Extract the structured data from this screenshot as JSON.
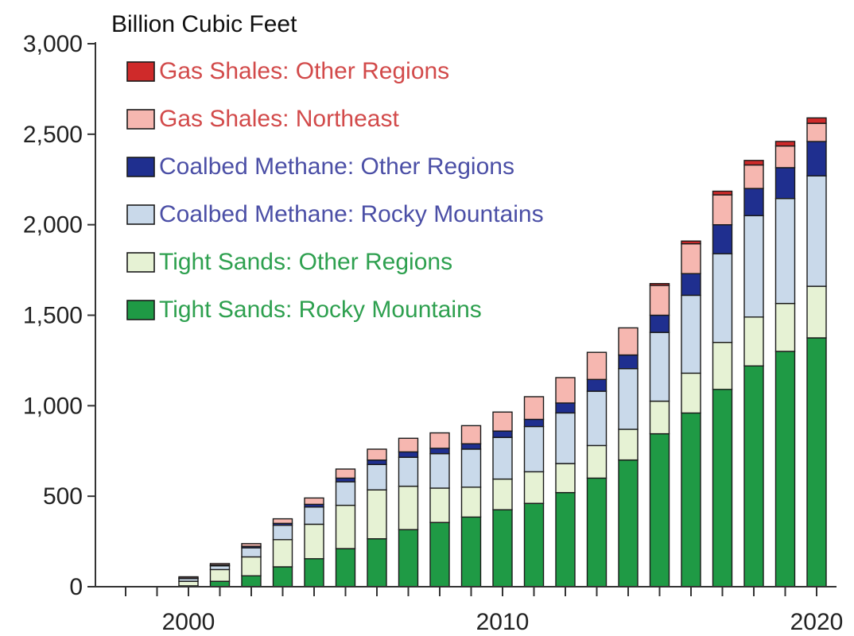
{
  "chart_data": {
    "type": "bar",
    "stacked": true,
    "ylabel": "Billion Cubic Feet",
    "ylim": [
      0,
      3000
    ],
    "yticks": [
      0,
      500,
      1000,
      1500,
      2000,
      2500,
      3000
    ],
    "ytick_labels": [
      "0",
      "500",
      "1,000",
      "1,500",
      "2,000",
      "2,500",
      "3,000"
    ],
    "xlim": [
      1998,
      2020
    ],
    "xtick_labels": [
      "2000",
      "2010",
      "2020"
    ],
    "legend_position": "top-left",
    "grid": false,
    "categories": [
      2000,
      2001,
      2002,
      2003,
      2004,
      2005,
      2006,
      2007,
      2008,
      2009,
      2010,
      2011,
      2012,
      2013,
      2014,
      2015,
      2016,
      2017,
      2018,
      2019,
      2020
    ],
    "series": [
      {
        "name": "Tight Sands: Rocky Mountains",
        "color": "#1f9a45",
        "legend_text_color": "#2ea04f",
        "values": [
          5,
          30,
          60,
          110,
          155,
          210,
          265,
          315,
          355,
          385,
          425,
          460,
          520,
          600,
          700,
          845,
          960,
          1090,
          1220,
          1300,
          1375
        ]
      },
      {
        "name": "Tight Sands: Other Regions",
        "color": "#e6f2d4",
        "legend_text_color": "#2ea04f",
        "values": [
          25,
          65,
          105,
          150,
          190,
          240,
          270,
          240,
          190,
          165,
          170,
          175,
          160,
          180,
          170,
          180,
          220,
          260,
          270,
          265,
          285
        ]
      },
      {
        "name": "Coalbed Methane: Rocky Mountains",
        "color": "#c9d9ea",
        "legend_text_color": "#4b4fa6",
        "values": [
          15,
          20,
          50,
          80,
          95,
          130,
          140,
          160,
          190,
          210,
          230,
          250,
          280,
          300,
          335,
          380,
          430,
          490,
          560,
          580,
          610
        ]
      },
      {
        "name": "Coalbed Methane: Other Regions",
        "color": "#1f2f8f",
        "legend_text_color": "#4b4fa6",
        "values": [
          3,
          5,
          8,
          10,
          15,
          20,
          25,
          30,
          30,
          30,
          35,
          40,
          55,
          65,
          75,
          95,
          120,
          160,
          150,
          170,
          190
        ]
      },
      {
        "name": "Gas Shales: Northeast",
        "color": "#f6b7b0",
        "legend_text_color": "#d24a4a",
        "values": [
          7,
          8,
          15,
          25,
          35,
          50,
          60,
          75,
          85,
          100,
          105,
          125,
          140,
          150,
          150,
          165,
          165,
          165,
          130,
          120,
          100
        ]
      },
      {
        "name": "Gas Shales: Other Regions",
        "color": "#cf2a2a",
        "legend_text_color": "#d24a4a",
        "values": [
          0,
          0,
          0,
          0,
          0,
          0,
          0,
          0,
          0,
          0,
          0,
          0,
          0,
          0,
          0,
          10,
          15,
          20,
          25,
          25,
          30
        ]
      }
    ]
  }
}
